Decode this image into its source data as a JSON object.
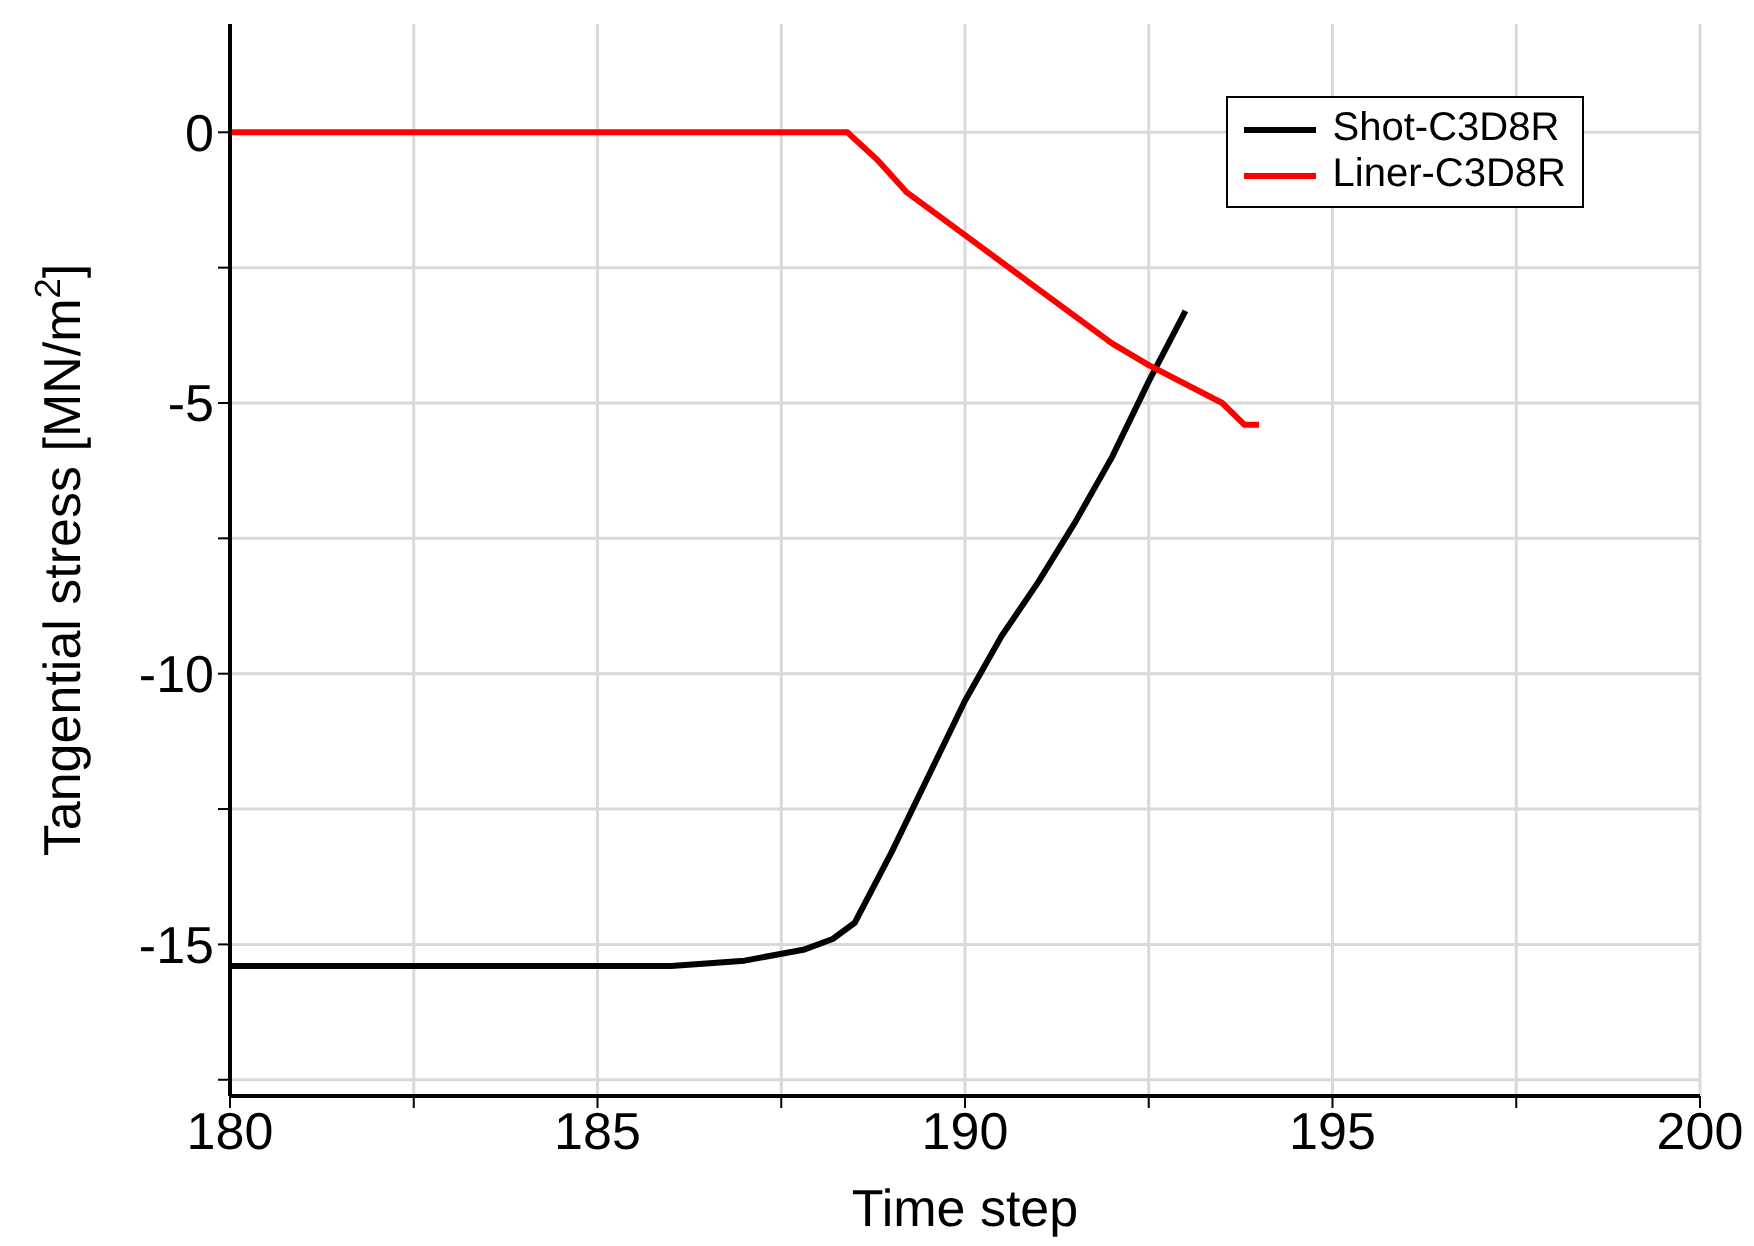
{
  "chart_data": {
    "type": "line",
    "xlabel": "Time step",
    "ylabel": "Tangential stress [MN/m$^{2}$]",
    "xlim": [
      180,
      200
    ],
    "xticks": [
      180,
      {
        "value": 182.5,
        "label": null
      },
      185,
      {
        "value": 187.5,
        "label": null
      },
      190,
      {
        "value": 192.5,
        "label": null
      },
      195,
      {
        "value": 197.5,
        "label": null
      },
      200
    ],
    "ylim": [
      -17.8,
      2
    ],
    "yticks": [
      {
        "value": -17.5,
        "label": null
      },
      -15,
      {
        "value": -12.5,
        "label": null
      },
      -10,
      {
        "value": -7.5,
        "label": null
      },
      -5,
      {
        "value": -2.5,
        "label": null
      },
      0
    ],
    "grid": true,
    "legend": "top right",
    "line_style": "solid",
    "marker": "none",
    "series": [
      {
        "name": "Shot-C3D8R",
        "color": "#000000",
        "x": [
          180,
          186,
          187,
          187.8,
          188.2,
          188.5,
          189,
          189.5,
          190,
          190.5,
          191,
          191.5,
          192,
          192.5,
          193
        ],
        "values": [
          -15.4,
          -15.4,
          -15.3,
          -15.1,
          -14.9,
          -14.6,
          -13.3,
          -11.9,
          -10.5,
          -9.3,
          -8.3,
          -7.2,
          -6.0,
          -4.6,
          -3.3
        ]
      },
      {
        "name": "Liner-C3D8R",
        "color": "#ff0000",
        "x": [
          180,
          188.4,
          188.8,
          189.2,
          190,
          191,
          192,
          192.5,
          193.5,
          193.8,
          194
        ],
        "values": [
          0,
          0,
          -0.5,
          -1.1,
          -1.9,
          -2.9,
          -3.9,
          -4.3,
          -5.0,
          -5.4,
          -5.4
        ]
      }
    ]
  }
}
